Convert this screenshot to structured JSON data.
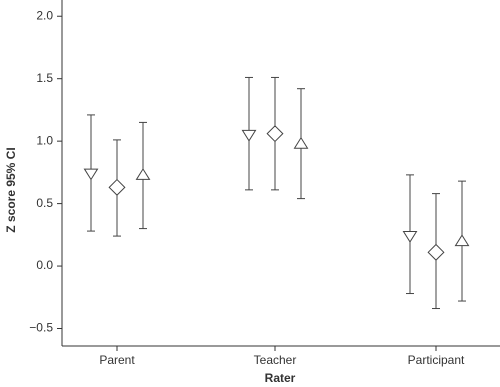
{
  "chart_data": {
    "type": "errorbar",
    "x_label": "Rater",
    "y_label": "Z score 95% CI",
    "categories": [
      "Parent",
      "Teacher",
      "Participant"
    ],
    "series": [
      {
        "marker": "triangle-down",
        "color": "#444444",
        "values": [
          0.74,
          1.05,
          0.24
        ],
        "lower": [
          0.28,
          0.61,
          -0.22
        ],
        "upper": [
          1.21,
          1.51,
          0.73
        ]
      },
      {
        "marker": "diamond",
        "color": "#444444",
        "values": [
          0.63,
          1.06,
          0.11
        ],
        "lower": [
          0.24,
          0.61,
          -0.34
        ],
        "upper": [
          1.01,
          1.51,
          0.58
        ]
      },
      {
        "marker": "triangle-up",
        "color": "#444444",
        "values": [
          0.73,
          0.98,
          0.2
        ],
        "lower": [
          0.3,
          0.54,
          -0.28
        ],
        "upper": [
          1.15,
          1.42,
          0.68
        ]
      }
    ],
    "ylim": [
      -0.64,
      2.13
    ],
    "yticks": [
      {
        "value": -0.5,
        "label": "−0.5"
      },
      {
        "value": 0,
        "label": "0.0"
      },
      0.5,
      {
        "value": 1,
        "label": "1.0"
      },
      1.5,
      {
        "value": 2,
        "label": "2.0"
      }
    ]
  }
}
